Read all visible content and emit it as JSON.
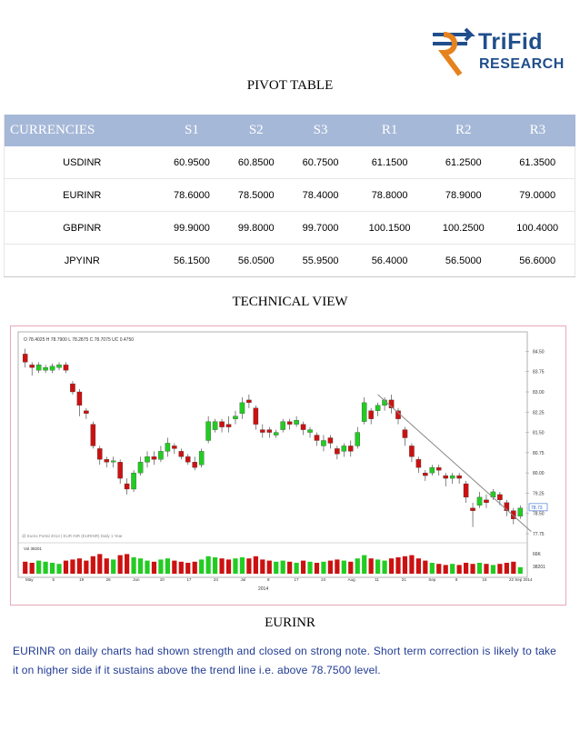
{
  "logo": {
    "brand": "TriFid",
    "sub": "RESEARCH",
    "icon": "rupee-arrow-icon"
  },
  "pivot": {
    "title": "PIVOT TABLE",
    "headers": [
      "CURRENCIES",
      "S1",
      "S2",
      "S3",
      "R1",
      "R2",
      "R3"
    ],
    "rows": [
      [
        "USDINR",
        "60.9500",
        "60.8500",
        "60.7500",
        "61.1500",
        "61.2500",
        "61.3500"
      ],
      [
        "EURINR",
        "78.6000",
        "78.5000",
        "78.4000",
        "78.8000",
        "78.9000",
        "79.0000"
      ],
      [
        "GBPINR",
        "99.9000",
        "99.8000",
        "99.7000",
        "100.1500",
        "100.2500",
        "100.4000"
      ],
      [
        "JPYINR",
        "56.1500",
        "56.0500",
        "55.9500",
        "56.4000",
        "56.5000",
        "56.6000"
      ]
    ]
  },
  "technical": {
    "title": "TECHNICAL  VIEW"
  },
  "chart_data": {
    "type": "candlestick",
    "ohlc_header": "O 78.4025  H 78.7900  L 78.2875  C 78.7075  UC 0.4750",
    "y_ticks": [
      "84.50",
      "83.75",
      "83.00",
      "82.25",
      "81.50",
      "80.75",
      "80.00",
      "79.25",
      "78.50",
      "77.75"
    ],
    "last_price_label": "78.73",
    "volume_label": "Vol 38201",
    "volume_ticks": [
      "66K",
      "38201"
    ],
    "x_ticks": [
      "May",
      "5",
      "19",
      "26",
      "Jun",
      "10",
      "17",
      "24",
      "Jul",
      "8",
      "17",
      "24",
      "Aug",
      "11",
      "21",
      "Sep",
      "8",
      "15",
      "22 Sep 2014"
    ],
    "year_label": "2014",
    "watermark": "@ Eurex Portal 2014 | EUR INR (EURINR) Daily 1 Year",
    "ylim": [
      77.75,
      84.75
    ],
    "candles": [
      {
        "o": 84.4,
        "c": 84.1,
        "h": 84.6,
        "l": 83.9
      },
      {
        "o": 84.0,
        "c": 83.9,
        "h": 84.1,
        "l": 83.6
      },
      {
        "o": 83.8,
        "c": 84.0,
        "h": 84.1,
        "l": 83.7
      },
      {
        "o": 83.8,
        "c": 83.9,
        "h": 84.0,
        "l": 83.7
      },
      {
        "o": 83.8,
        "c": 83.95,
        "h": 84.05,
        "l": 83.7
      },
      {
        "o": 83.9,
        "c": 84.0,
        "h": 84.1,
        "l": 83.8
      },
      {
        "o": 84.0,
        "c": 83.8,
        "h": 84.1,
        "l": 83.7
      },
      {
        "o": 83.3,
        "c": 83.0,
        "h": 83.4,
        "l": 82.9
      },
      {
        "o": 83.0,
        "c": 82.5,
        "h": 83.1,
        "l": 82.1
      },
      {
        "o": 82.3,
        "c": 82.2,
        "h": 82.4,
        "l": 82.0
      },
      {
        "o": 81.8,
        "c": 81.0,
        "h": 81.9,
        "l": 80.9
      },
      {
        "o": 80.9,
        "c": 80.5,
        "h": 81.0,
        "l": 80.3
      },
      {
        "o": 80.5,
        "c": 80.4,
        "h": 80.6,
        "l": 80.2
      },
      {
        "o": 80.4,
        "c": 80.45,
        "h": 80.6,
        "l": 80.2
      },
      {
        "o": 80.4,
        "c": 79.8,
        "h": 80.5,
        "l": 79.6
      },
      {
        "o": 79.6,
        "c": 79.4,
        "h": 79.8,
        "l": 79.2
      },
      {
        "o": 79.4,
        "c": 80.0,
        "h": 80.1,
        "l": 79.3
      },
      {
        "o": 80.0,
        "c": 80.4,
        "h": 80.6,
        "l": 79.9
      },
      {
        "o": 80.4,
        "c": 80.6,
        "h": 80.8,
        "l": 80.2
      },
      {
        "o": 80.6,
        "c": 80.5,
        "h": 80.8,
        "l": 80.3
      },
      {
        "o": 80.5,
        "c": 80.8,
        "h": 81.0,
        "l": 80.4
      },
      {
        "o": 80.8,
        "c": 81.1,
        "h": 81.3,
        "l": 80.6
      },
      {
        "o": 81.0,
        "c": 80.9,
        "h": 81.1,
        "l": 80.7
      },
      {
        "o": 80.8,
        "c": 80.6,
        "h": 80.9,
        "l": 80.5
      },
      {
        "o": 80.6,
        "c": 80.4,
        "h": 80.7,
        "l": 80.3
      },
      {
        "o": 80.4,
        "c": 80.2,
        "h": 80.6,
        "l": 80.1
      },
      {
        "o": 80.3,
        "c": 80.8,
        "h": 80.9,
        "l": 80.2
      },
      {
        "o": 81.2,
        "c": 81.9,
        "h": 82.1,
        "l": 81.1
      },
      {
        "o": 81.6,
        "c": 81.9,
        "h": 82.0,
        "l": 81.5
      },
      {
        "o": 81.9,
        "c": 81.7,
        "h": 82.0,
        "l": 81.5
      },
      {
        "o": 81.8,
        "c": 81.7,
        "h": 82.1,
        "l": 81.5
      },
      {
        "o": 82.0,
        "c": 82.1,
        "h": 82.3,
        "l": 81.8
      },
      {
        "o": 82.2,
        "c": 82.6,
        "h": 82.8,
        "l": 82.0
      },
      {
        "o": 82.7,
        "c": 82.6,
        "h": 82.9,
        "l": 82.4
      },
      {
        "o": 82.4,
        "c": 81.8,
        "h": 82.5,
        "l": 81.6
      },
      {
        "o": 81.6,
        "c": 81.5,
        "h": 81.8,
        "l": 81.3
      },
      {
        "o": 81.6,
        "c": 81.5,
        "h": 81.7,
        "l": 81.3
      },
      {
        "o": 81.4,
        "c": 81.5,
        "h": 81.6,
        "l": 81.3
      },
      {
        "o": 81.6,
        "c": 81.9,
        "h": 82.0,
        "l": 81.5
      },
      {
        "o": 81.9,
        "c": 81.8,
        "h": 82.0,
        "l": 81.6
      },
      {
        "o": 81.8,
        "c": 81.95,
        "h": 82.1,
        "l": 81.7
      },
      {
        "o": 81.8,
        "c": 81.6,
        "h": 81.9,
        "l": 81.4
      },
      {
        "o": 81.5,
        "c": 81.6,
        "h": 81.7,
        "l": 81.3
      },
      {
        "o": 81.4,
        "c": 81.2,
        "h": 81.5,
        "l": 81.0
      },
      {
        "o": 81.0,
        "c": 81.2,
        "h": 81.4,
        "l": 80.8
      },
      {
        "o": 81.3,
        "c": 81.1,
        "h": 81.4,
        "l": 80.9
      },
      {
        "o": 80.9,
        "c": 80.7,
        "h": 81.0,
        "l": 80.5
      },
      {
        "o": 80.8,
        "c": 81.0,
        "h": 81.1,
        "l": 80.6
      },
      {
        "o": 81.0,
        "c": 80.8,
        "h": 81.2,
        "l": 80.6
      },
      {
        "o": 81.0,
        "c": 81.5,
        "h": 81.7,
        "l": 80.9
      },
      {
        "o": 81.9,
        "c": 82.6,
        "h": 82.8,
        "l": 81.8
      },
      {
        "o": 82.3,
        "c": 82.0,
        "h": 82.4,
        "l": 81.8
      },
      {
        "o": 82.3,
        "c": 82.5,
        "h": 82.6,
        "l": 82.1
      },
      {
        "o": 82.5,
        "c": 82.7,
        "h": 82.8,
        "l": 82.3
      },
      {
        "o": 82.7,
        "c": 82.4,
        "h": 82.9,
        "l": 82.2
      },
      {
        "o": 82.3,
        "c": 82.0,
        "h": 82.4,
        "l": 81.8
      },
      {
        "o": 81.6,
        "c": 81.3,
        "h": 81.7,
        "l": 81.0
      },
      {
        "o": 81.0,
        "c": 80.6,
        "h": 81.1,
        "l": 80.4
      },
      {
        "o": 80.5,
        "c": 80.2,
        "h": 80.6,
        "l": 80.0
      },
      {
        "o": 80.0,
        "c": 79.9,
        "h": 80.1,
        "l": 79.7
      },
      {
        "o": 80.0,
        "c": 80.2,
        "h": 80.3,
        "l": 79.9
      },
      {
        "o": 80.2,
        "c": 80.1,
        "h": 80.3,
        "l": 79.9
      },
      {
        "o": 79.9,
        "c": 79.8,
        "h": 80.0,
        "l": 79.5
      },
      {
        "o": 79.8,
        "c": 79.9,
        "h": 80.0,
        "l": 79.6
      },
      {
        "o": 79.9,
        "c": 79.8,
        "h": 80.0,
        "l": 79.6
      },
      {
        "o": 79.6,
        "c": 79.1,
        "h": 79.7,
        "l": 78.9
      },
      {
        "o": 78.7,
        "c": 78.6,
        "h": 78.9,
        "l": 78.0
      },
      {
        "o": 78.8,
        "c": 79.1,
        "h": 79.3,
        "l": 78.7
      },
      {
        "o": 79.0,
        "c": 78.9,
        "h": 79.2,
        "l": 78.7
      },
      {
        "o": 79.1,
        "c": 79.3,
        "h": 79.4,
        "l": 79.0
      },
      {
        "o": 79.2,
        "c": 79.0,
        "h": 79.3,
        "l": 78.8
      },
      {
        "o": 78.9,
        "c": 78.6,
        "h": 79.0,
        "l": 78.4
      },
      {
        "o": 78.6,
        "c": 78.3,
        "h": 78.7,
        "l": 78.1
      },
      {
        "o": 78.4,
        "c": 78.7,
        "h": 78.8,
        "l": 78.3
      }
    ],
    "volumes": [
      0.55,
      0.5,
      0.6,
      0.55,
      0.5,
      0.45,
      0.6,
      0.65,
      0.7,
      0.6,
      0.8,
      0.9,
      0.7,
      0.65,
      0.85,
      0.9,
      0.75,
      0.7,
      0.6,
      0.55,
      0.65,
      0.7,
      0.6,
      0.55,
      0.5,
      0.55,
      0.65,
      0.8,
      0.75,
      0.7,
      0.65,
      0.7,
      0.75,
      0.7,
      0.8,
      0.65,
      0.6,
      0.55,
      0.6,
      0.55,
      0.5,
      0.6,
      0.55,
      0.5,
      0.55,
      0.6,
      0.65,
      0.6,
      0.55,
      0.7,
      0.85,
      0.7,
      0.65,
      0.6,
      0.7,
      0.75,
      0.8,
      0.85,
      0.7,
      0.6,
      0.5,
      0.45,
      0.4,
      0.45,
      0.4,
      0.5,
      0.45,
      0.5,
      0.45,
      0.4,
      0.45,
      0.5,
      0.55,
      0.3
    ],
    "trendline": {
      "from_index": 52,
      "from_value": 82.9,
      "to_index": 73,
      "to_value": 78.1
    }
  },
  "pair_label": "EURINR",
  "commentary": "EURINR on daily charts had shown strength and closed on strong note. Short term correction is likely to take it on higher side if it sustains above the trend line i.e. above 78.7500 level.",
  "colors": {
    "header_bg": "#a6b8d8",
    "bull": "#22cc22",
    "bear": "#cc1111",
    "text_blue": "#1f3a93"
  }
}
